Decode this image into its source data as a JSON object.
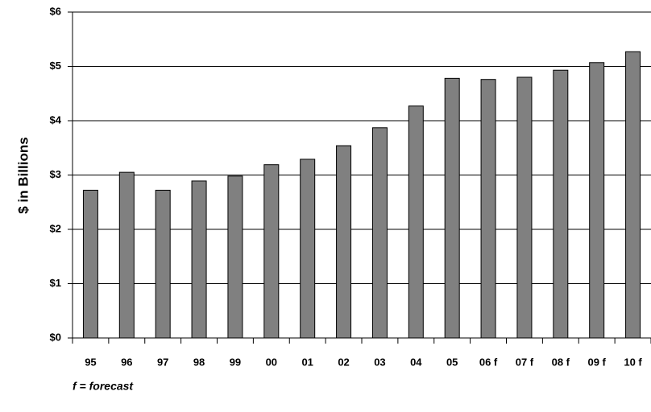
{
  "chart_data": {
    "type": "bar",
    "y_label": "$ in Billions",
    "note": "f = forecast",
    "categories": [
      "95",
      "96",
      "97",
      "98",
      "99",
      "00",
      "01",
      "02",
      "03",
      "04",
      "05",
      "06 f",
      "07 f",
      "08 f",
      "09 f",
      "10 f"
    ],
    "values": [
      2.72,
      3.05,
      2.72,
      2.89,
      2.98,
      3.19,
      3.29,
      3.54,
      3.87,
      4.27,
      4.78,
      4.76,
      4.8,
      4.93,
      5.07,
      5.27
    ],
    "color": "#808080",
    "ylim": [
      0,
      6
    ],
    "yticks": [
      {
        "value": 0,
        "label": "$0"
      },
      {
        "value": 1,
        "label": "$1"
      },
      {
        "value": 2,
        "label": "$2"
      },
      {
        "value": 3,
        "label": "$3"
      },
      {
        "value": 4,
        "label": "$4"
      },
      {
        "value": 5,
        "label": "$5"
      },
      {
        "value": 6,
        "label": "$6"
      }
    ],
    "grid": true
  }
}
